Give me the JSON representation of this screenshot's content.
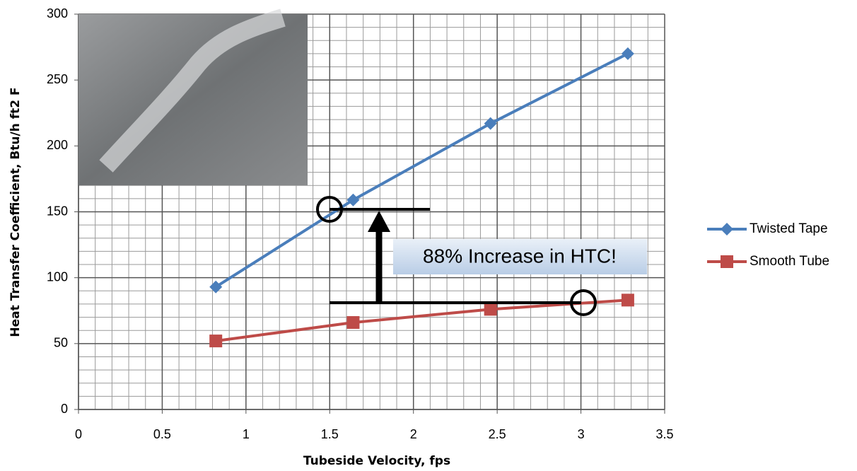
{
  "chart_data": {
    "type": "line",
    "x_label": "Tubeside Velocity, fps",
    "y_label": "Heat Transfer Coefficient, Btu/h ft2 F",
    "annotation": "88% Increase in HTC!",
    "x": [
      0.82,
      1.64,
      2.46,
      3.28
    ],
    "series": [
      {
        "name": "Twisted Tape",
        "color": "#4a7ebb",
        "marker": "diamond",
        "values": [
          93,
          159,
          217,
          270
        ]
      },
      {
        "name": "Smooth Tube",
        "color": "#be4b48",
        "marker": "square",
        "values": [
          52,
          66,
          76,
          83
        ]
      }
    ],
    "xlim": [
      0,
      3.5
    ],
    "xticks": [
      0,
      0.5,
      1,
      1.5,
      2,
      2.5,
      3,
      3.5
    ],
    "ylim": [
      0,
      300
    ],
    "yticks": [
      0,
      50,
      100,
      150,
      200,
      250,
      300
    ],
    "grid": true,
    "legend": "right"
  }
}
